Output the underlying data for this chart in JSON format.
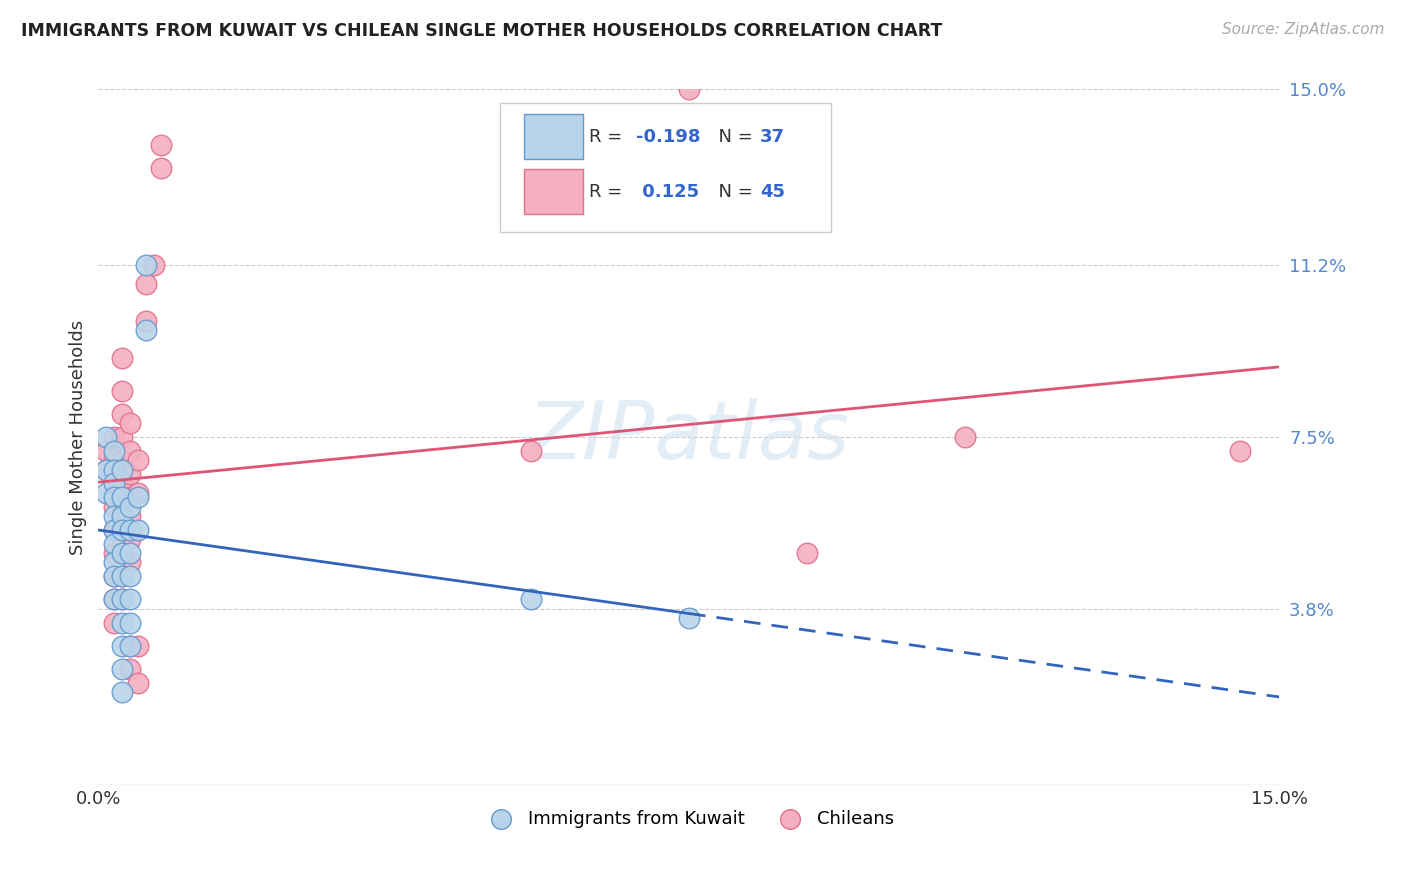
{
  "title": "IMMIGRANTS FROM KUWAIT VS CHILEAN SINGLE MOTHER HOUSEHOLDS CORRELATION CHART",
  "source": "Source: ZipAtlas.com",
  "ylabel": "Single Mother Households",
  "xlim": [
    0.0,
    0.15
  ],
  "ylim": [
    0.0,
    0.15
  ],
  "ytick_labels": [
    "",
    "3.8%",
    "7.5%",
    "11.2%",
    "15.0%"
  ],
  "ytick_values": [
    0.0,
    0.038,
    0.075,
    0.112,
    0.15
  ],
  "legend_labels_bottom": [
    "Immigrants from Kuwait",
    "Chileans"
  ],
  "kuwait_color": "#b8d4ea",
  "chilean_color": "#f4b0c0",
  "kuwait_edge_color": "#6699cc",
  "chilean_edge_color": "#e07090",
  "kuwait_line_color": "#3366bb",
  "chilean_line_color": "#dd5577",
  "watermark_text": "ZIPatlas",
  "background_color": "#ffffff",
  "kuwait_R": -0.198,
  "kuwait_N": 37,
  "chilean_R": 0.125,
  "chilean_N": 45,
  "kuwait_points": [
    [
      0.001,
      0.075
    ],
    [
      0.001,
      0.068
    ],
    [
      0.001,
      0.063
    ],
    [
      0.002,
      0.072
    ],
    [
      0.002,
      0.068
    ],
    [
      0.002,
      0.065
    ],
    [
      0.002,
      0.062
    ],
    [
      0.002,
      0.058
    ],
    [
      0.002,
      0.055
    ],
    [
      0.002,
      0.052
    ],
    [
      0.002,
      0.048
    ],
    [
      0.002,
      0.045
    ],
    [
      0.002,
      0.04
    ],
    [
      0.003,
      0.068
    ],
    [
      0.003,
      0.062
    ],
    [
      0.003,
      0.058
    ],
    [
      0.003,
      0.055
    ],
    [
      0.003,
      0.05
    ],
    [
      0.003,
      0.045
    ],
    [
      0.003,
      0.04
    ],
    [
      0.003,
      0.035
    ],
    [
      0.003,
      0.03
    ],
    [
      0.003,
      0.025
    ],
    [
      0.003,
      0.02
    ],
    [
      0.004,
      0.06
    ],
    [
      0.004,
      0.055
    ],
    [
      0.004,
      0.05
    ],
    [
      0.004,
      0.045
    ],
    [
      0.004,
      0.04
    ],
    [
      0.004,
      0.035
    ],
    [
      0.004,
      0.03
    ],
    [
      0.005,
      0.062
    ],
    [
      0.005,
      0.055
    ],
    [
      0.006,
      0.112
    ],
    [
      0.006,
      0.098
    ],
    [
      0.055,
      0.04
    ],
    [
      0.075,
      0.036
    ]
  ],
  "chilean_points": [
    [
      0.001,
      0.072
    ],
    [
      0.001,
      0.068
    ],
    [
      0.002,
      0.075
    ],
    [
      0.002,
      0.07
    ],
    [
      0.002,
      0.065
    ],
    [
      0.002,
      0.06
    ],
    [
      0.002,
      0.055
    ],
    [
      0.002,
      0.05
    ],
    [
      0.002,
      0.045
    ],
    [
      0.002,
      0.04
    ],
    [
      0.002,
      0.035
    ],
    [
      0.003,
      0.092
    ],
    [
      0.003,
      0.085
    ],
    [
      0.003,
      0.08
    ],
    [
      0.003,
      0.075
    ],
    [
      0.003,
      0.07
    ],
    [
      0.003,
      0.065
    ],
    [
      0.003,
      0.06
    ],
    [
      0.003,
      0.055
    ],
    [
      0.003,
      0.05
    ],
    [
      0.003,
      0.045
    ],
    [
      0.003,
      0.04
    ],
    [
      0.004,
      0.078
    ],
    [
      0.004,
      0.072
    ],
    [
      0.004,
      0.067
    ],
    [
      0.004,
      0.062
    ],
    [
      0.004,
      0.058
    ],
    [
      0.004,
      0.053
    ],
    [
      0.004,
      0.048
    ],
    [
      0.004,
      0.03
    ],
    [
      0.004,
      0.025
    ],
    [
      0.005,
      0.07
    ],
    [
      0.005,
      0.063
    ],
    [
      0.005,
      0.03
    ],
    [
      0.005,
      0.022
    ],
    [
      0.006,
      0.108
    ],
    [
      0.006,
      0.1
    ],
    [
      0.007,
      0.112
    ],
    [
      0.008,
      0.138
    ],
    [
      0.008,
      0.133
    ],
    [
      0.055,
      0.072
    ],
    [
      0.075,
      0.15
    ],
    [
      0.09,
      0.05
    ],
    [
      0.11,
      0.075
    ],
    [
      0.145,
      0.072
    ]
  ]
}
